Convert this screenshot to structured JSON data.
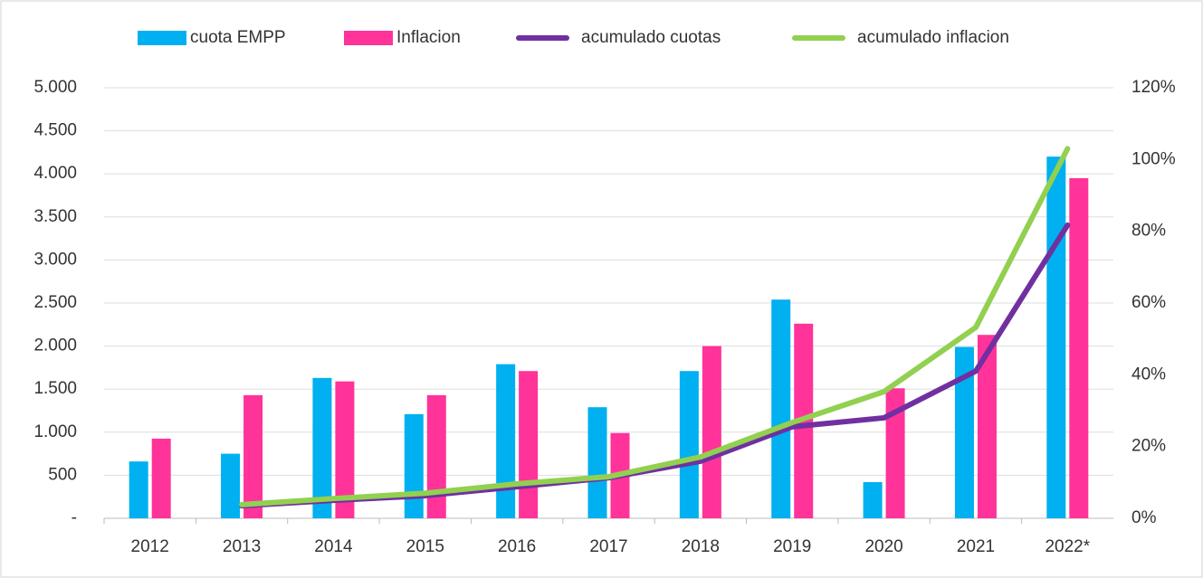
{
  "chart_data": {
    "type": "bar",
    "categories": [
      "2012",
      "2013",
      "2014",
      "2015",
      "2016",
      "2017",
      "2018",
      "2019",
      "2020",
      "2021",
      "2022*"
    ],
    "series": [
      {
        "name": "cuota EMPP",
        "type": "bar",
        "color": "#00b0f0",
        "values": [
          660,
          750,
          1630,
          1210,
          1790,
          1290,
          1710,
          2540,
          420,
          1990,
          4200
        ]
      },
      {
        "name": "Inflacion",
        "type": "bar",
        "color": "#ff3399",
        "values": [
          925,
          1430,
          1590,
          1430,
          1710,
          990,
          2000,
          2260,
          1510,
          2130,
          3950
        ]
      },
      {
        "name": "acumulado cuotas",
        "type": "line",
        "axis": "y2",
        "color": "#7030a0",
        "values": [
          null,
          3.5,
          5,
          6.3,
          8.8,
          11.3,
          15.9,
          25.5,
          28,
          41,
          81.7
        ]
      },
      {
        "name": "acumulado inflacion",
        "type": "line",
        "axis": "y2",
        "color": "#92d050",
        "values": [
          null,
          3.8,
          5.5,
          7,
          9.6,
          11.6,
          17.1,
          26.7,
          35.3,
          53.2,
          103
        ]
      }
    ],
    "ylim": [
      0,
      5000
    ],
    "yticks": [
      {
        "value": 0,
        "label": "-"
      },
      500,
      {
        "value": 1000,
        "label": "1.000"
      },
      {
        "value": 1500,
        "label": "1.500"
      },
      {
        "value": 2000,
        "label": "2.000"
      },
      {
        "value": 2500,
        "label": "2.500"
      },
      {
        "value": 3000,
        "label": "3.000"
      },
      {
        "value": 3500,
        "label": "3.500"
      },
      {
        "value": 4000,
        "label": "4.000"
      },
      {
        "value": 4500,
        "label": "4.500"
      },
      {
        "value": 5000,
        "label": "5.000"
      }
    ],
    "y2lim": [
      0,
      120
    ],
    "y2ticks": [
      {
        "value": 0,
        "label": "0%"
      },
      {
        "value": 20,
        "label": "20%"
      },
      {
        "value": 40,
        "label": "40%"
      },
      {
        "value": 60,
        "label": "60%"
      },
      {
        "value": 80,
        "label": "80%"
      },
      {
        "value": 100,
        "label": "100%"
      },
      {
        "value": 120,
        "label": "120%"
      }
    ],
    "grid": true,
    "legend": "top"
  }
}
